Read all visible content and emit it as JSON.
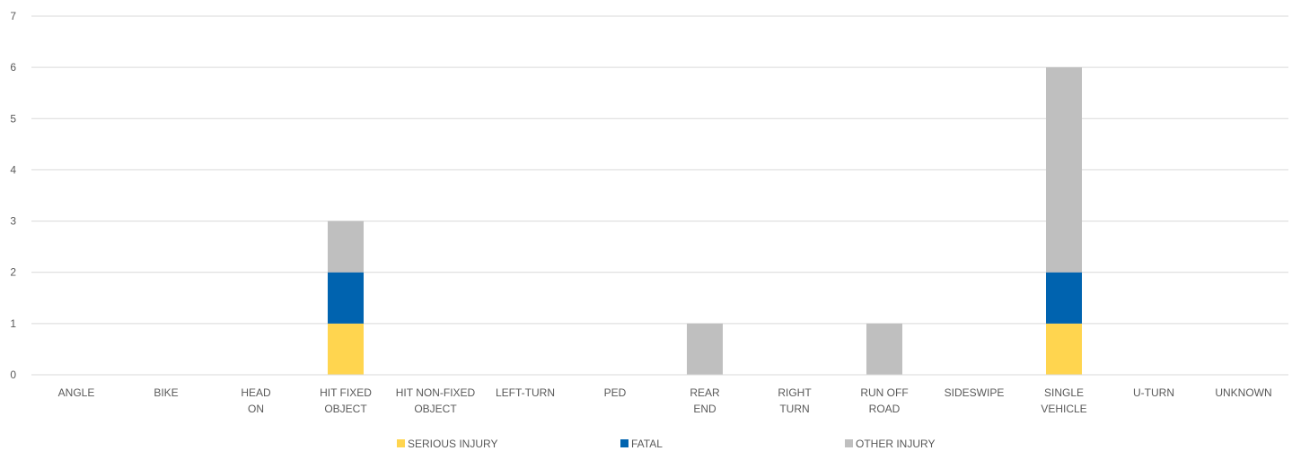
{
  "chart_data": {
    "type": "bar",
    "stacked": true,
    "categories": [
      "ANGLE",
      "BIKE",
      "HEAD ON",
      "HIT FIXED OBJECT",
      "HIT NON-FIXED OBJECT",
      "LEFT-TURN",
      "PED",
      "REAR END",
      "RIGHT TURN",
      "RUN OFF ROAD",
      "SIDESWIPE",
      "SINGLE VEHICLE",
      "U-TURN",
      "UNKNOWN"
    ],
    "category_lines": [
      [
        "ANGLE"
      ],
      [
        "BIKE"
      ],
      [
        "HEAD",
        "ON"
      ],
      [
        "HIT FIXED",
        "OBJECT"
      ],
      [
        "HIT NON-FIXED",
        "OBJECT"
      ],
      [
        "LEFT-TURN"
      ],
      [
        "PED"
      ],
      [
        "REAR",
        "END"
      ],
      [
        "RIGHT",
        "TURN"
      ],
      [
        "RUN OFF",
        "ROAD"
      ],
      [
        "SIDESWIPE"
      ],
      [
        "SINGLE",
        "VEHICLE"
      ],
      [
        "U-TURN"
      ],
      [
        "UNKNOWN"
      ]
    ],
    "series": [
      {
        "name": "SERIOUS INJURY",
        "color": "#FFD54F",
        "values": [
          0,
          0,
          0,
          1,
          0,
          0,
          0,
          0,
          0,
          0,
          0,
          1,
          0,
          0
        ]
      },
      {
        "name": "FATAL",
        "color": "#0063AF",
        "values": [
          0,
          0,
          0,
          1,
          0,
          0,
          0,
          0,
          0,
          0,
          0,
          1,
          0,
          0
        ]
      },
      {
        "name": "OTHER INJURY",
        "color": "#BFBFBF",
        "values": [
          0,
          0,
          0,
          1,
          0,
          0,
          0,
          1,
          0,
          1,
          0,
          4,
          0,
          0
        ]
      }
    ],
    "ylim": [
      0,
      7
    ],
    "yticks": [
      0,
      1,
      2,
      3,
      4,
      5,
      6,
      7
    ],
    "grid": true,
    "legend_position": "bottom",
    "title": "",
    "xlabel": "",
    "ylabel": ""
  }
}
